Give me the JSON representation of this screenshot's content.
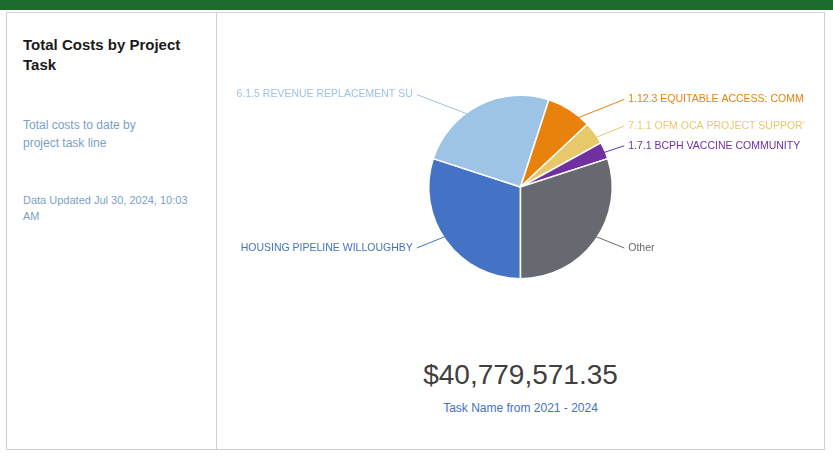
{
  "chart_data": {
    "type": "pie",
    "title": "Total Costs by Project\nTask",
    "subtitle": "Total costs to date by\nproject task line",
    "annotations": [
      "Data Updated Jul 30, 2024, 10:03\nAM",
      "$40,779,571.35",
      "Task Name from 2021 - 2024"
    ],
    "categories": [
      "HOUSING PIPELINE WILLOUGHBY",
      "6.1.5 REVENUE REPLACEMENT SU",
      "1.12.3 EQUITABLE ACCESS: COMM",
      "7.1.1 OFM OCA PROJECT SUPPOR'",
      "1.7.1 BCPH VACCINE COMMUNITY",
      "Other"
    ],
    "values": [
      30,
      25,
      8,
      4,
      3,
      30
    ],
    "colors": [
      "#4472C4",
      "#9DC3E6",
      "#E8820C",
      "#E8C96A",
      "#7030A0",
      "#666970"
    ]
  }
}
